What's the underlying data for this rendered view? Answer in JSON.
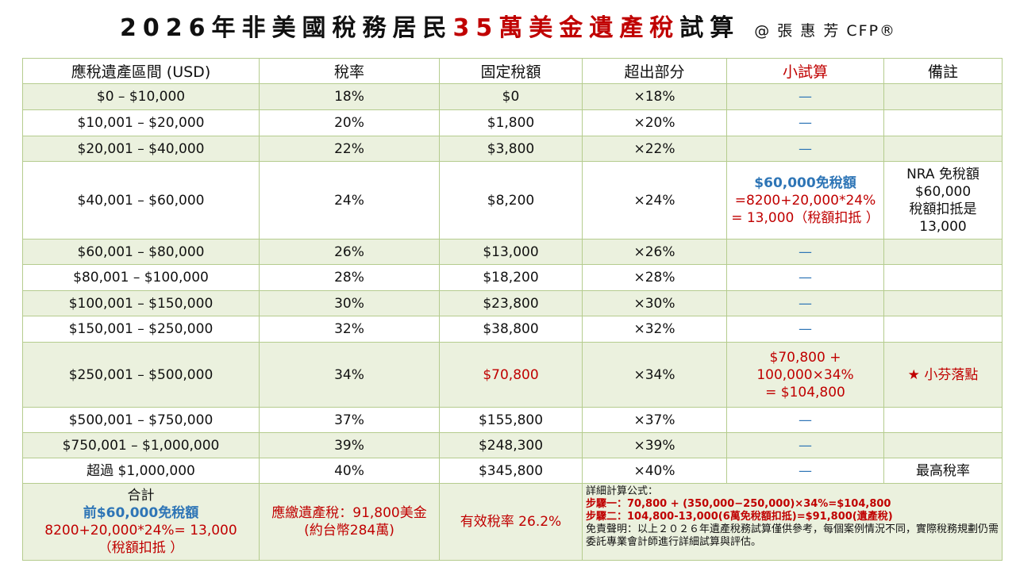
{
  "header": {
    "title_parts": [
      "2026年非美國稅務居民",
      "35萬美金遺產稅",
      "試算"
    ],
    "author": "@ 張 惠 芳 CFP®"
  },
  "table": {
    "columns": [
      "應稅遺產區間 (USD)",
      "稅率",
      "固定稅額",
      "超出部分",
      "小試算",
      "備註"
    ],
    "rows": [
      [
        "$0 – $10,000",
        "18%",
        "$0",
        "×18%",
        "—",
        ""
      ],
      [
        "$10,001 – $20,000",
        "20%",
        "$1,800",
        "×20%",
        "—",
        ""
      ],
      [
        "$20,001 – $40,000",
        "22%",
        "$3,800",
        "×22%",
        "—",
        ""
      ],
      [
        "$40,001 – $60,000",
        "24%",
        "$8,200",
        "×24%",
        [
          "$60,000免稅額",
          "=8200+20,000*24%",
          "= 13,000（稅額扣抵 ）"
        ],
        [
          "NRA 免稅額",
          "$60,000",
          "稅額扣抵是",
          "13,000"
        ]
      ],
      [
        "$60,001 – $80,000",
        "26%",
        "$13,000",
        "×26%",
        "—",
        ""
      ],
      [
        "$80,001 – $100,000",
        "28%",
        "$18,200",
        "×28%",
        "—",
        ""
      ],
      [
        "$100,001 – $150,000",
        "30%",
        "$23,800",
        "×30%",
        "—",
        ""
      ],
      [
        "$150,001 – $250,000",
        "32%",
        "$38,800",
        "×32%",
        "—",
        ""
      ],
      [
        "$250,001 – $500,000",
        "34%",
        "$70,800",
        "×34%",
        [
          "$70,800 +",
          "100,000×34%",
          "= $104,800"
        ],
        "★ 小芬落點"
      ],
      [
        "$500,001 – $750,000",
        "37%",
        "$155,800",
        "×37%",
        "—",
        ""
      ],
      [
        "$750,001 – $1,000,000",
        "39%",
        "$248,300",
        "×39%",
        "—",
        ""
      ],
      [
        "超過 $1,000,000",
        "40%",
        "$345,800",
        "×40%",
        "—",
        "最高稅率"
      ]
    ],
    "footer": [
      [
        "合計",
        "前$60,000免稅額",
        "8200+20,000*24%= 13,000",
        "（稅額扣抵 ）"
      ],
      [
        "應繳遺產稅：91,800美金",
        "(約台幣284萬)"
      ],
      [
        "有效稅率 26.2%"
      ],
      [
        "詳細計算公式：",
        "步驟一：70,800 + (350,000−250,000)×34%=$104,800",
        "步驟二：104,800-13,000(6萬免稅額扣抵)=$91,800(遺產稅)",
        "免責聲明：以上２０２６年遺產稅務試算僅供參考，每個案例情況不同，實際稅務規劃仍需委託專業會計師進行詳細試算與評估。"
      ]
    ]
  }
}
